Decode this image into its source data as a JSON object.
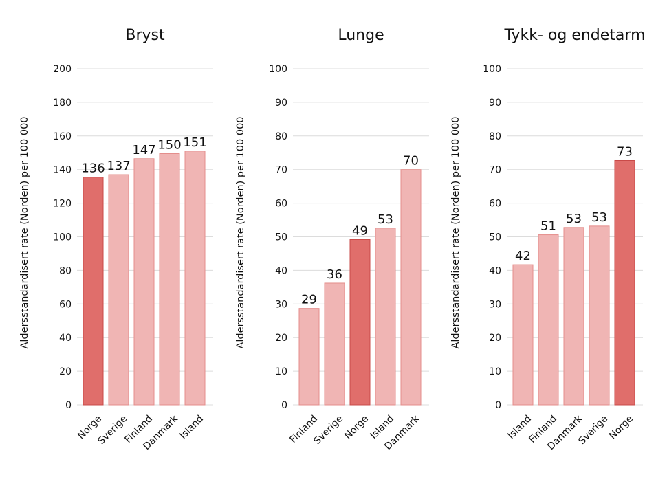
{
  "colors": {
    "highlight_fill": "#e06e6b",
    "highlight_stroke": "#c94b48",
    "bar_fill": "#f0b5b4",
    "bar_stroke": "#e48d8b",
    "grid": "#dcdcdc"
  },
  "chart_data": [
    {
      "type": "bar",
      "title": "Bryst",
      "ylabel": "Aldersstandardisert rate (Norden) per 100 000",
      "ylim": [
        0,
        200
      ],
      "yticks": [
        0,
        20,
        40,
        60,
        80,
        100,
        120,
        140,
        160,
        180,
        200
      ],
      "grid": true,
      "categories": [
        "Norge",
        "Sverige",
        "Finland",
        "Danmark",
        "Island"
      ],
      "values": [
        135.5,
        137,
        146.5,
        149.5,
        151
      ],
      "value_labels": [
        "136",
        "137",
        "147",
        "150",
        "151"
      ],
      "highlight": "Norge"
    },
    {
      "type": "bar",
      "title": "Lunge",
      "ylabel": "Aldersstandardisert rate (Norden) per 100 000",
      "ylim": [
        0,
        100
      ],
      "yticks": [
        0,
        10,
        20,
        30,
        40,
        50,
        60,
        70,
        80,
        90,
        100
      ],
      "grid": true,
      "categories": [
        "Finland",
        "Sverige",
        "Norge",
        "Island",
        "Danmark"
      ],
      "values": [
        28.7,
        36.2,
        49.2,
        52.6,
        70
      ],
      "value_labels": [
        "29",
        "36",
        "49",
        "53",
        "70"
      ],
      "highlight": "Norge"
    },
    {
      "type": "bar",
      "title": "Tykk- og endetarm",
      "ylabel": "Aldersstandardisert rate (Norden) per 100 000",
      "ylim": [
        0,
        100
      ],
      "yticks": [
        0,
        10,
        20,
        30,
        40,
        50,
        60,
        70,
        80,
        90,
        100
      ],
      "grid": true,
      "categories": [
        "Island",
        "Finland",
        "Danmark",
        "Sverige",
        "Norge"
      ],
      "values": [
        41.7,
        50.6,
        52.8,
        53.2,
        72.7
      ],
      "value_labels": [
        "42",
        "51",
        "53",
        "53",
        "73"
      ],
      "highlight": "Norge"
    }
  ]
}
